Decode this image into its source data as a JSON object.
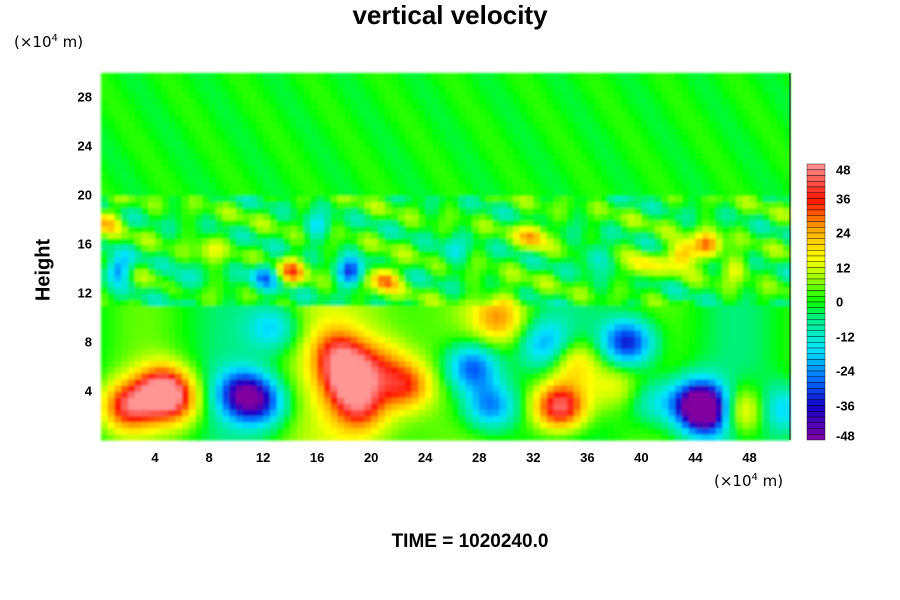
{
  "chart_data": {
    "type": "heatmap",
    "title": "vertical velocity",
    "xlabel": "",
    "ylabel": "Height",
    "x_unit": "(×10",
    "x_unit_exp": "4",
    "x_unit_tail": " m)",
    "y_unit": "(×10",
    "y_unit_exp": "4",
    "y_unit_tail": " m)",
    "xlim": [
      0,
      51
    ],
    "ylim": [
      0,
      30
    ],
    "x_ticks": [
      "4",
      "8",
      "12",
      "16",
      "20",
      "24",
      "28",
      "32",
      "36",
      "40",
      "44",
      "48"
    ],
    "y_ticks": [
      "4",
      "8",
      "12",
      "16",
      "20",
      "24",
      "28"
    ],
    "colorbar": {
      "min": -48,
      "max": 48,
      "ticks": [
        "48",
        "36",
        "24",
        "12",
        "0",
        "-12",
        "-24",
        "-36",
        "-48"
      ]
    },
    "blobs": [
      {
        "x": 2.0,
        "y": 2.8,
        "v": 36
      },
      {
        "x": 4.6,
        "y": 4.2,
        "v": 40
      },
      {
        "x": 5.5,
        "y": 3.0,
        "v": 22
      },
      {
        "x": 10.5,
        "y": 3.8,
        "v": -36
      },
      {
        "x": 12.0,
        "y": 3.0,
        "v": -24
      },
      {
        "x": 12.8,
        "y": 9.2,
        "v": -20
      },
      {
        "x": 18.5,
        "y": 5.0,
        "v": 42
      },
      {
        "x": 17.6,
        "y": 7.2,
        "v": 26
      },
      {
        "x": 19.2,
        "y": 2.6,
        "v": 26
      },
      {
        "x": 22.5,
        "y": 4.5,
        "v": 30
      },
      {
        "x": 20.8,
        "y": 6.5,
        "v": 14
      },
      {
        "x": 27.5,
        "y": 6.0,
        "v": -34
      },
      {
        "x": 28.8,
        "y": 2.8,
        "v": -30
      },
      {
        "x": 29.5,
        "y": 10.0,
        "v": 22
      },
      {
        "x": 34.0,
        "y": 2.8,
        "v": 48
      },
      {
        "x": 35.0,
        "y": 6.5,
        "v": 24
      },
      {
        "x": 33.0,
        "y": 7.8,
        "v": -22
      },
      {
        "x": 39.0,
        "y": 8.0,
        "v": -38
      },
      {
        "x": 38.0,
        "y": 4.5,
        "v": 14
      },
      {
        "x": 40.8,
        "y": 3.2,
        "v": -16
      },
      {
        "x": 44.2,
        "y": 3.0,
        "v": -44
      },
      {
        "x": 45.2,
        "y": 2.2,
        "v": -36
      },
      {
        "x": 47.2,
        "y": 2.4,
        "v": 32
      },
      {
        "x": 50.5,
        "y": 2.5,
        "v": -20
      },
      {
        "x": 1.2,
        "y": 14.0,
        "v": -28
      },
      {
        "x": 12.0,
        "y": 13.5,
        "v": -22
      },
      {
        "x": 14.2,
        "y": 13.8,
        "v": 26
      },
      {
        "x": 18.5,
        "y": 13.8,
        "v": -32
      },
      {
        "x": 21.0,
        "y": 13.2,
        "v": 30
      },
      {
        "x": 16.0,
        "y": 17.5,
        "v": -14
      },
      {
        "x": 32.0,
        "y": 16.8,
        "v": 24
      },
      {
        "x": 43.0,
        "y": 15.2,
        "v": 32
      },
      {
        "x": 45.0,
        "y": 16.0,
        "v": 26
      },
      {
        "x": 36.5,
        "y": 15.0,
        "v": -14
      },
      {
        "x": 8.0,
        "y": 15.5,
        "v": 12
      },
      {
        "x": 26.0,
        "y": 15.5,
        "v": -12
      },
      {
        "x": 0.3,
        "y": 18.0,
        "v": 20
      },
      {
        "x": 47.0,
        "y": 14.0,
        "v": 12
      },
      {
        "x": 6.0,
        "y": 13.0,
        "v": -12
      },
      {
        "x": 40.0,
        "y": 14.2,
        "v": 16
      }
    ]
  },
  "time_label": "TIME = 1020240.0"
}
